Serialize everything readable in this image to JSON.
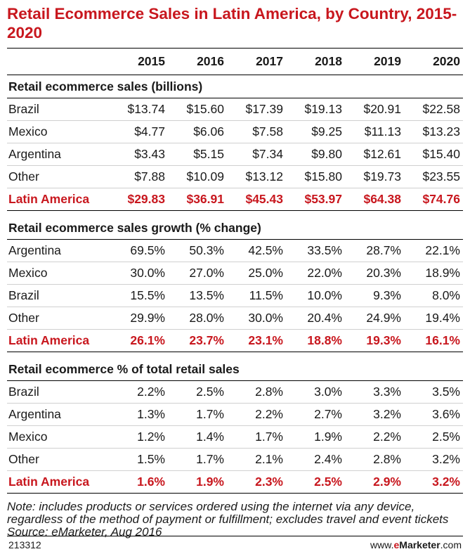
{
  "colors": {
    "accent": "#c8171e",
    "text": "#1a1a1a"
  },
  "header": {
    "title": "Retail Ecommerce Sales in Latin America, by Country, 2015-2020"
  },
  "chart_data": {
    "type": "table",
    "title": "Retail Ecommerce Sales in Latin America, by Country, 2015-2020",
    "years": [
      "2015",
      "2016",
      "2017",
      "2018",
      "2019",
      "2020"
    ],
    "sections": [
      {
        "title": "Retail ecommerce sales (billions)",
        "rows": [
          {
            "label": "Brazil",
            "values": [
              "$13.74",
              "$15.60",
              "$17.39",
              "$19.13",
              "$20.91",
              "$22.58"
            ]
          },
          {
            "label": "Mexico",
            "values": [
              "$4.77",
              "$6.06",
              "$7.58",
              "$9.25",
              "$11.13",
              "$13.23"
            ]
          },
          {
            "label": "Argentina",
            "values": [
              "$3.43",
              "$5.15",
              "$7.34",
              "$9.80",
              "$12.61",
              "$15.40"
            ]
          },
          {
            "label": "Other",
            "values": [
              "$7.88",
              "$10.09",
              "$13.12",
              "$15.80",
              "$19.73",
              "$23.55"
            ]
          }
        ],
        "total": {
          "label": "Latin America",
          "values": [
            "$29.83",
            "$36.91",
            "$45.43",
            "$53.97",
            "$64.38",
            "$74.76"
          ]
        }
      },
      {
        "title": "Retail ecommerce sales growth (% change)",
        "rows": [
          {
            "label": "Argentina",
            "values": [
              "69.5%",
              "50.3%",
              "42.5%",
              "33.5%",
              "28.7%",
              "22.1%"
            ]
          },
          {
            "label": "Mexico",
            "values": [
              "30.0%",
              "27.0%",
              "25.0%",
              "22.0%",
              "20.3%",
              "18.9%"
            ]
          },
          {
            "label": "Brazil",
            "values": [
              "15.5%",
              "13.5%",
              "11.5%",
              "10.0%",
              "9.3%",
              "8.0%"
            ]
          },
          {
            "label": "Other",
            "values": [
              "29.9%",
              "28.0%",
              "30.0%",
              "20.4%",
              "24.9%",
              "19.4%"
            ]
          }
        ],
        "total": {
          "label": "Latin America",
          "values": [
            "26.1%",
            "23.7%",
            "23.1%",
            "18.8%",
            "19.3%",
            "16.1%"
          ]
        }
      },
      {
        "title": "Retail ecommerce % of total retail sales",
        "rows": [
          {
            "label": "Brazil",
            "values": [
              "2.2%",
              "2.5%",
              "2.8%",
              "3.0%",
              "3.3%",
              "3.5%"
            ]
          },
          {
            "label": "Argentina",
            "values": [
              "1.3%",
              "1.7%",
              "2.2%",
              "2.7%",
              "3.2%",
              "3.6%"
            ]
          },
          {
            "label": "Mexico",
            "values": [
              "1.2%",
              "1.4%",
              "1.7%",
              "1.9%",
              "2.2%",
              "2.5%"
            ]
          },
          {
            "label": "Other",
            "values": [
              "1.5%",
              "1.7%",
              "2.1%",
              "2.4%",
              "2.8%",
              "3.2%"
            ]
          }
        ],
        "total": {
          "label": "Latin America",
          "values": [
            "1.6%",
            "1.9%",
            "2.3%",
            "2.5%",
            "2.9%",
            "3.2%"
          ]
        }
      }
    ]
  },
  "notes": {
    "note": "Note: includes products or services ordered using the internet via any device, regardless of the method of payment or fulfillment; excludes travel and event tickets",
    "source": "Source: eMarketer, Aug 2016"
  },
  "footer": {
    "id": "213312",
    "brand_prefix": "www.",
    "brand_e": "e",
    "brand_name": "Marketer",
    "brand_suffix": ".com"
  }
}
